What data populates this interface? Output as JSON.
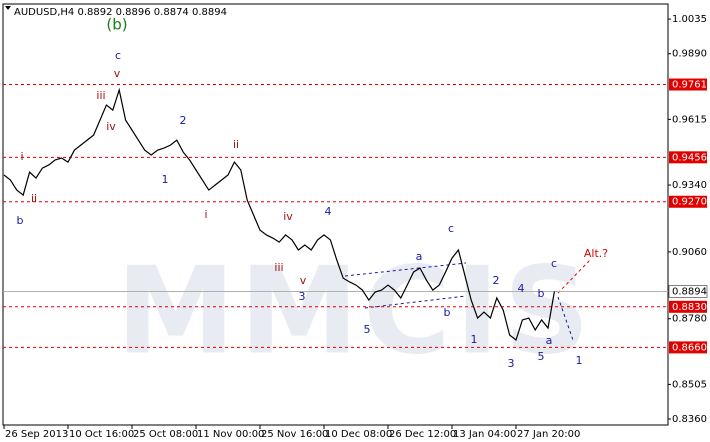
{
  "chart_data": {
    "type": "line",
    "title": "AUDUSD,H4  0.8892 0.8896 0.8874 0.8894",
    "watermark": "MMCIS",
    "categories": [
      "26 Sep 2013",
      null,
      null,
      null,
      null,
      null,
      null,
      null,
      null,
      null,
      "10 Oct 16:00",
      null,
      null,
      null,
      null,
      null,
      null,
      null,
      null,
      null,
      "25 Oct 08:00",
      null,
      null,
      null,
      null,
      null,
      null,
      null,
      null,
      null,
      "11 Nov 00:00",
      null,
      null,
      null,
      null,
      null,
      null,
      null,
      null,
      null,
      "25 Nov 16:00",
      null,
      null,
      null,
      null,
      null,
      null,
      null,
      null,
      null,
      "10 Dec 08:00",
      null,
      null,
      null,
      null,
      null,
      null,
      null,
      null,
      null,
      "26 Dec 12:00",
      null,
      null,
      null,
      null,
      null,
      null,
      null,
      null,
      null,
      "13 Jan 04:00",
      null,
      null,
      null,
      null,
      null,
      null,
      null,
      null,
      null,
      "27 Jan 20:00",
      null,
      null,
      null,
      null,
      null,
      null
    ],
    "values": [
      0.9382,
      0.9361,
      0.9319,
      0.9298,
      0.9394,
      0.9369,
      0.9411,
      0.9424,
      0.9445,
      0.9453,
      0.9436,
      0.9486,
      0.9507,
      0.9528,
      0.9549,
      0.9612,
      0.9675,
      0.9654,
      0.9738,
      0.9612,
      0.957,
      0.9528,
      0.9486,
      0.9466,
      0.9486,
      0.9495,
      0.9507,
      0.9528,
      0.9478,
      0.9445,
      0.9403,
      0.9361,
      0.9319,
      0.934,
      0.9361,
      0.9382,
      0.9436,
      0.9403,
      0.9277,
      0.9214,
      0.9151,
      0.9131,
      0.9118,
      0.9101,
      0.9131,
      0.911,
      0.9068,
      0.9089,
      0.9068,
      0.911,
      0.9131,
      0.911,
      0.9026,
      0.895,
      0.8934,
      0.8921,
      0.89,
      0.8858,
      0.8892,
      0.89,
      0.8921,
      0.89,
      0.8867,
      0.8921,
      0.8976,
      0.8992,
      0.8942,
      0.89,
      0.8921,
      0.8976,
      0.9034,
      0.9068,
      0.8963,
      0.8858,
      0.8783,
      0.8808,
      0.8783,
      0.8867,
      0.8816,
      0.8712,
      0.8691,
      0.8775,
      0.8783,
      0.8733,
      0.8775,
      0.8741,
      0.8894
    ],
    "color": "#000000",
    "ylim": [
      0.8335,
      1.0094
    ],
    "yticks": [
      1.0035,
      {
        "value": 0.989,
        "label": "0.9890"
      },
      0.9615,
      {
        "value": 0.934,
        "label": "0.9340"
      },
      {
        "value": 0.906,
        "label": "0.9060"
      },
      {
        "value": 0.878,
        "label": "0.8780"
      },
      0.8505,
      {
        "value": 0.836,
        "label": "0.8360"
      }
    ],
    "levels": [
      {
        "value": 0.9761,
        "label": "0.9761"
      },
      {
        "value": 0.9456,
        "label": "0.9456"
      },
      {
        "value": 0.927,
        "label": "0.9270"
      },
      {
        "value": 0.883,
        "label": "0.8830"
      },
      {
        "value": 0.866,
        "label": "0.8660"
      }
    ],
    "level_color": "#e00000",
    "current_price": {
      "value": 0.8894,
      "label": "0.8894"
    },
    "annotations": [
      {
        "text": "(b)",
        "color": "#1a7a1a"
      },
      {
        "text": "c",
        "color": "#1a1aa0"
      },
      {
        "text": "v",
        "color": "#a01010"
      },
      {
        "text": "iii",
        "color": "#a01010"
      },
      {
        "text": "iv",
        "color": "#a01010"
      },
      {
        "text": "2",
        "color": "#1a1aa0"
      },
      {
        "text": "1",
        "color": "#1a1aa0"
      },
      {
        "text": "ii",
        "color": "#a01010"
      },
      {
        "text": "i",
        "color": "#a01010"
      },
      {
        "text": "iv",
        "color": "#a01010"
      },
      {
        "text": "4",
        "color": "#1a1aa0"
      },
      {
        "text": "iii",
        "color": "#a01010"
      },
      {
        "text": "v",
        "color": "#a01010"
      },
      {
        "text": "3",
        "color": "#1a1aa0"
      },
      {
        "text": "b",
        "color": "#1a1aa0"
      },
      {
        "text": "i",
        "color": "#a01010"
      },
      {
        "text": "ii",
        "color": "#a01010"
      },
      {
        "text": "5",
        "color": "#1a1aa0"
      },
      {
        "text": "a",
        "color": "#1a1aa0"
      },
      {
        "text": "b",
        "color": "#1a1aa0"
      },
      {
        "text": "c",
        "color": "#1a1aa0"
      },
      {
        "text": "1",
        "color": "#1a1aa0"
      },
      {
        "text": "2",
        "color": "#1a1aa0"
      },
      {
        "text": "3",
        "color": "#1a1aa0"
      },
      {
        "text": "4",
        "color": "#1a1aa0"
      },
      {
        "text": "5",
        "color": "#1a1aa0"
      },
      {
        "text": "b",
        "color": "#1a1aa0"
      },
      {
        "text": "a",
        "color": "#1a1aa0"
      },
      {
        "text": "c",
        "color": "#1a1aa0"
      },
      {
        "text": "1",
        "color": "#1a1aa0"
      },
      {
        "text": "Alt.?",
        "color": "#e00000"
      }
    ]
  }
}
